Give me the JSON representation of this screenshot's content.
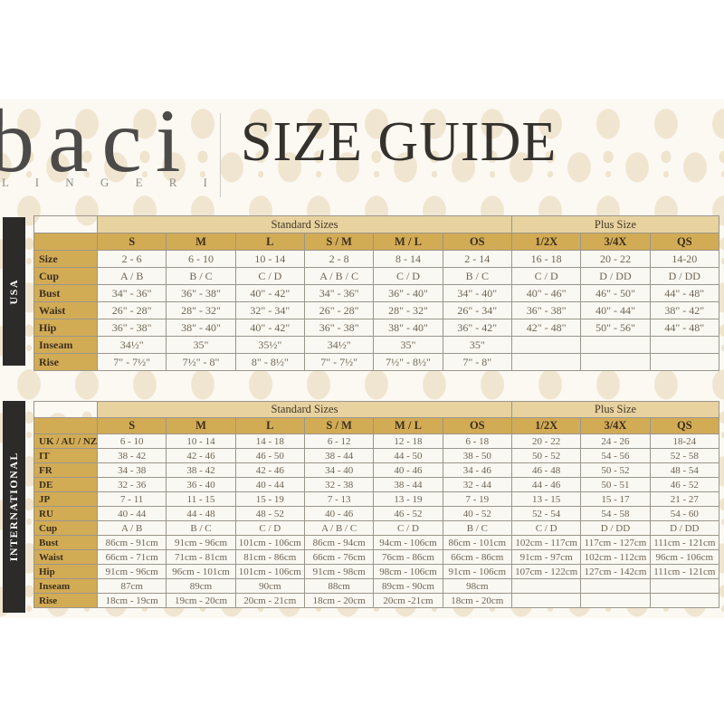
{
  "brand": {
    "name": "baci",
    "subtitle": "L I N G E R I E"
  },
  "title": "SIZE GUIDE",
  "colors": {
    "gold_dark": "#d2ab55",
    "gold_light": "#e7d2a0",
    "bar_black": "#2d2b29",
    "cell_cream": "#faf8f2",
    "pattern_base": "#fcf9f3",
    "pattern_motif": "#eee2ca"
  },
  "tables": [
    {
      "section_label": "USA",
      "group_headers": [
        {
          "label": "Standard Sizes",
          "span": 6
        },
        {
          "label": "Plus Size",
          "span": 3
        }
      ],
      "columns": [
        "S",
        "M",
        "L",
        "S / M",
        "M / L",
        "OS",
        "1/2X",
        "3/4X",
        "QS"
      ],
      "rows": [
        {
          "label": "Size",
          "values": [
            "2 - 6",
            "6 - 10",
            "10 - 14",
            "2 - 8",
            "8 - 14",
            "2 - 14",
            "16 - 18",
            "20 - 22",
            "14-20"
          ]
        },
        {
          "label": "Cup",
          "values": [
            "A / B",
            "B / C",
            "C / D",
            "A / B / C",
            "C / D",
            "B / C",
            "C / D",
            "D / DD",
            "D / DD"
          ]
        },
        {
          "label": "Bust",
          "values": [
            "34\" - 36\"",
            "36\" - 38\"",
            "40\" - 42\"",
            "34\" - 36\"",
            "36\" - 40\"",
            "34\" - 40\"",
            "40\" - 46\"",
            "46\" - 50\"",
            "44\" - 48\""
          ]
        },
        {
          "label": "Waist",
          "values": [
            "26\" - 28\"",
            "28\" - 32\"",
            "32\" - 34\"",
            "26\" - 28\"",
            "28\" - 32\"",
            "26\" - 34\"",
            "36\" - 38\"",
            "40\" - 44\"",
            "38\" - 42\""
          ]
        },
        {
          "label": "Hip",
          "values": [
            "36\" - 38\"",
            "38\" - 40\"",
            "40\" - 42\"",
            "36\" - 38\"",
            "38\" - 40\"",
            "36\" - 42\"",
            "42\" - 48\"",
            "50\" - 56\"",
            "44\" - 48\""
          ]
        },
        {
          "label": "Inseam",
          "values": [
            "34½\"",
            "35\"",
            "35½\"",
            "34½\"",
            "35\"",
            "35\"",
            "",
            "",
            ""
          ]
        },
        {
          "label": "Rise",
          "values": [
            "7\" - 7½\"",
            "7½\" - 8\"",
            "8\" - 8½\"",
            "7\" - 7½\"",
            "7½\" - 8½\"",
            "7\" - 8\"",
            "",
            "",
            ""
          ]
        }
      ]
    },
    {
      "section_label": "INTERNATIONAL",
      "group_headers": [
        {
          "label": "Standard Sizes",
          "span": 6
        },
        {
          "label": "Plus Size",
          "span": 3
        }
      ],
      "columns": [
        "S",
        "M",
        "L",
        "S / M",
        "M / L",
        "OS",
        "1/2X",
        "3/4X",
        "QS"
      ],
      "rows": [
        {
          "label": "UK / AU / NZ",
          "values": [
            "6 - 10",
            "10 - 14",
            "14 - 18",
            "6 - 12",
            "12 - 18",
            "6 - 18",
            "20 - 22",
            "24 - 26",
            "18-24"
          ]
        },
        {
          "label": "IT",
          "values": [
            "38 - 42",
            "42 - 46",
            "46 - 50",
            "38 - 44",
            "44 - 50",
            "38 - 50",
            "50 - 52",
            "54 - 56",
            "52 - 58"
          ]
        },
        {
          "label": "FR",
          "values": [
            "34 - 38",
            "38 - 42",
            "42 - 46",
            "34 - 40",
            "40 - 46",
            "34 - 46",
            "46 - 48",
            "50 - 52",
            "48 - 54"
          ]
        },
        {
          "label": "DE",
          "values": [
            "32 - 36",
            "36 - 40",
            "40 - 44",
            "32 - 38",
            "38 - 44",
            "32 - 44",
            "44 - 46",
            "50 - 51",
            "46 - 52"
          ]
        },
        {
          "label": "JP",
          "values": [
            "7 - 11",
            "11 - 15",
            "15 - 19",
            "7 - 13",
            "13 - 19",
            "7 - 19",
            "13 - 15",
            "15 - 17",
            "21 - 27"
          ]
        },
        {
          "label": "RU",
          "values": [
            "40 - 44",
            "44 - 48",
            "48 - 52",
            "40 - 46",
            "46 - 52",
            "40 - 52",
            "52 - 54",
            "54 - 58",
            "54 - 60"
          ]
        },
        {
          "label": "Cup",
          "values": [
            "A / B",
            "B / C",
            "C / D",
            "A / B / C",
            "C / D",
            "B / C",
            "C / D",
            "D / DD",
            "D / DD"
          ]
        },
        {
          "label": "Bust",
          "values": [
            "86cm - 91cm",
            "91cm - 96cm",
            "101cm - 106cm",
            "86cm - 94cm",
            "94cm - 106cm",
            "86cm - 101cm",
            "102cm - 117cm",
            "117cm - 127cm",
            "111cm - 121cm"
          ]
        },
        {
          "label": "Waist",
          "values": [
            "66cm - 71cm",
            "71cm - 81cm",
            "81cm - 86cm",
            "66cm - 76cm",
            "76cm - 86cm",
            "66cm - 86cm",
            "91cm - 97cm",
            "102cm - 112cm",
            "96cm - 106cm"
          ]
        },
        {
          "label": "Hip",
          "values": [
            "91cm - 96cm",
            "96cm - 101cm",
            "101cm - 106cm",
            "91cm - 98cm",
            "98cm - 106cm",
            "91cm - 106cm",
            "107cm - 122cm",
            "127cm - 142cm",
            "111cm - 121cm"
          ]
        },
        {
          "label": "Inseam",
          "values": [
            "87cm",
            "89cm",
            "90cm",
            "88cm",
            "89cm - 90cm",
            "98cm",
            "",
            "",
            ""
          ]
        },
        {
          "label": "Rise",
          "values": [
            "18cm - 19cm",
            "19cm - 20cm",
            "20cm - 21cm",
            "18cm - 20cm",
            "20cm -21cm",
            "18cm - 20cm",
            "",
            "",
            ""
          ]
        }
      ]
    }
  ]
}
